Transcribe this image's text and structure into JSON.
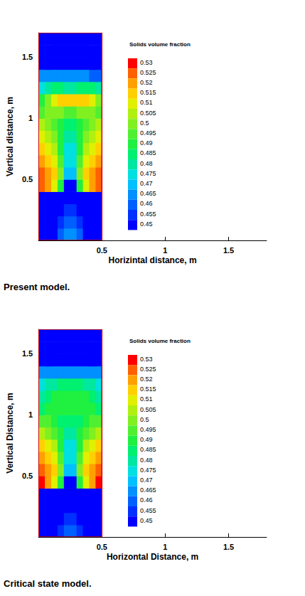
{
  "chart_data": [
    {
      "type": "contour",
      "title": "Present model.",
      "xlabel": "Horizintal distance, m",
      "ylabel": "Vertical distance, m",
      "xlim": [
        0,
        1.8
      ],
      "xticks": [
        0.5,
        1,
        1.5
      ],
      "ylim": [
        0,
        1.7
      ],
      "yticks": [
        0.5,
        1,
        1.5
      ],
      "x_bins": [
        0,
        0.05,
        0.1,
        0.15,
        0.2,
        0.25,
        0.3,
        0.35,
        0.4,
        0.45,
        0.5
      ],
      "y_bins": [
        0,
        0.1,
        0.2,
        0.3,
        0.4,
        0.5,
        0.6,
        0.7,
        0.8,
        0.9,
        1.0,
        1.1,
        1.2,
        1.3,
        1.4,
        1.5,
        1.6,
        1.7
      ],
      "cells": [
        [
          0.45,
          0.45,
          0.45,
          0.46,
          0.465,
          0.465,
          0.46,
          0.45,
          0.45,
          0.45
        ],
        [
          0.45,
          0.45,
          0.45,
          0.455,
          0.46,
          0.46,
          0.455,
          0.45,
          0.45,
          0.45
        ],
        [
          0.45,
          0.45,
          0.45,
          0.45,
          0.455,
          0.455,
          0.45,
          0.45,
          0.45,
          0.45
        ],
        [
          0.45,
          0.45,
          0.45,
          0.45,
          0.45,
          0.45,
          0.45,
          0.45,
          0.45,
          0.45
        ],
        [
          0.525,
          0.52,
          0.51,
          0.49,
          0.45,
          0.45,
          0.49,
          0.51,
          0.52,
          0.525
        ],
        [
          0.525,
          0.52,
          0.515,
          0.5,
          0.47,
          0.47,
          0.5,
          0.515,
          0.52,
          0.525
        ],
        [
          0.52,
          0.515,
          0.51,
          0.495,
          0.475,
          0.475,
          0.495,
          0.51,
          0.515,
          0.52
        ],
        [
          0.515,
          0.51,
          0.505,
          0.49,
          0.475,
          0.475,
          0.49,
          0.505,
          0.51,
          0.515
        ],
        [
          0.51,
          0.505,
          0.5,
          0.49,
          0.48,
          0.48,
          0.49,
          0.5,
          0.505,
          0.51
        ],
        [
          0.505,
          0.5,
          0.495,
          0.49,
          0.485,
          0.485,
          0.49,
          0.495,
          0.5,
          0.505
        ],
        [
          0.495,
          0.5,
          0.5,
          0.5,
          0.495,
          0.495,
          0.5,
          0.5,
          0.5,
          0.495
        ],
        [
          0.49,
          0.5,
          0.51,
          0.515,
          0.515,
          0.515,
          0.515,
          0.515,
          0.51,
          0.5
        ],
        [
          0.475,
          0.48,
          0.485,
          0.485,
          0.48,
          0.48,
          0.485,
          0.485,
          0.485,
          0.48
        ],
        [
          0.465,
          0.465,
          0.465,
          0.465,
          0.465,
          0.465,
          0.465,
          0.465,
          0.46,
          0.46
        ],
        [
          0.45,
          0.45,
          0.45,
          0.45,
          0.45,
          0.45,
          0.45,
          0.45,
          0.45,
          0.45
        ],
        [
          0.45,
          0.45,
          0.45,
          0.45,
          0.45,
          0.45,
          0.45,
          0.45,
          0.45,
          0.45
        ],
        [
          0.45,
          0.45,
          0.45,
          0.45,
          0.45,
          0.45,
          0.45,
          0.45,
          0.45,
          0.45
        ]
      ],
      "colorbar": {
        "title": "Solids volume fraction",
        "ticks": [
          0.45,
          0.455,
          0.46,
          0.465,
          0.47,
          0.475,
          0.48,
          0.485,
          0.49,
          0.495,
          0.5,
          0.505,
          0.51,
          0.515,
          0.52,
          0.525,
          0.53
        ],
        "colors": [
          "#0000ff",
          "#0030ff",
          "#0060ff",
          "#0090ff",
          "#00c0ff",
          "#00e0e0",
          "#00e8a0",
          "#00f070",
          "#20f040",
          "#50f030",
          "#80f020",
          "#b0f010",
          "#e0f000",
          "#ffd000",
          "#ffa000",
          "#ff6000",
          "#ff0000"
        ]
      }
    },
    {
      "type": "contour",
      "title": "Critical state model.",
      "xlabel": "Horizontal Distance, m",
      "ylabel": "Vertical Distance, m",
      "xlim": [
        0,
        1.8
      ],
      "xticks": [
        0.5,
        1,
        1.5
      ],
      "ylim": [
        0,
        1.7
      ],
      "yticks": [
        0.5,
        1,
        1.5
      ],
      "x_bins": [
        0,
        0.05,
        0.1,
        0.15,
        0.2,
        0.25,
        0.3,
        0.35,
        0.4,
        0.45,
        0.5
      ],
      "y_bins": [
        0,
        0.1,
        0.2,
        0.3,
        0.4,
        0.5,
        0.6,
        0.7,
        0.8,
        0.9,
        1.0,
        1.1,
        1.2,
        1.3,
        1.4,
        1.5,
        1.6,
        1.7
      ],
      "cells": [
        [
          0.45,
          0.45,
          0.45,
          0.455,
          0.46,
          0.46,
          0.455,
          0.45,
          0.45,
          0.45
        ],
        [
          0.45,
          0.45,
          0.45,
          0.45,
          0.455,
          0.455,
          0.45,
          0.45,
          0.45,
          0.45
        ],
        [
          0.45,
          0.45,
          0.45,
          0.45,
          0.45,
          0.45,
          0.45,
          0.45,
          0.45,
          0.45
        ],
        [
          0.45,
          0.45,
          0.45,
          0.45,
          0.45,
          0.45,
          0.45,
          0.45,
          0.45,
          0.45
        ],
        [
          0.53,
          0.52,
          0.51,
          0.49,
          0.45,
          0.45,
          0.49,
          0.51,
          0.52,
          0.53
        ],
        [
          0.525,
          0.52,
          0.515,
          0.5,
          0.47,
          0.47,
          0.5,
          0.515,
          0.52,
          0.525
        ],
        [
          0.52,
          0.515,
          0.51,
          0.495,
          0.475,
          0.475,
          0.495,
          0.51,
          0.515,
          0.52
        ],
        [
          0.515,
          0.51,
          0.505,
          0.49,
          0.475,
          0.475,
          0.49,
          0.505,
          0.51,
          0.515
        ],
        [
          0.505,
          0.5,
          0.495,
          0.49,
          0.48,
          0.48,
          0.49,
          0.495,
          0.5,
          0.505
        ],
        [
          0.495,
          0.495,
          0.49,
          0.485,
          0.485,
          0.485,
          0.485,
          0.49,
          0.495,
          0.495
        ],
        [
          0.485,
          0.49,
          0.49,
          0.49,
          0.49,
          0.49,
          0.49,
          0.49,
          0.49,
          0.485
        ],
        [
          0.48,
          0.485,
          0.49,
          0.49,
          0.49,
          0.49,
          0.49,
          0.49,
          0.485,
          0.48
        ],
        [
          0.475,
          0.48,
          0.48,
          0.485,
          0.485,
          0.485,
          0.485,
          0.48,
          0.48,
          0.475
        ],
        [
          0.465,
          0.465,
          0.465,
          0.465,
          0.465,
          0.465,
          0.465,
          0.465,
          0.465,
          0.465
        ],
        [
          0.45,
          0.45,
          0.45,
          0.45,
          0.45,
          0.45,
          0.45,
          0.45,
          0.45,
          0.45
        ],
        [
          0.45,
          0.45,
          0.45,
          0.45,
          0.45,
          0.45,
          0.45,
          0.45,
          0.45,
          0.45
        ],
        [
          0.45,
          0.45,
          0.45,
          0.45,
          0.45,
          0.45,
          0.45,
          0.45,
          0.45,
          0.45
        ]
      ],
      "colorbar": {
        "title": "Solids volume fraction",
        "ticks": [
          0.45,
          0.455,
          0.46,
          0.465,
          0.47,
          0.475,
          0.48,
          0.485,
          0.49,
          0.495,
          0.5,
          0.505,
          0.51,
          0.515,
          0.52,
          0.525,
          0.53
        ],
        "colors": [
          "#0000ff",
          "#0030ff",
          "#0060ff",
          "#0090ff",
          "#00c0ff",
          "#00e0e0",
          "#00e8a0",
          "#00f070",
          "#20f040",
          "#50f030",
          "#80f020",
          "#b0f010",
          "#e0f000",
          "#ffd000",
          "#ffa000",
          "#ff6000",
          "#ff0000"
        ]
      }
    }
  ]
}
